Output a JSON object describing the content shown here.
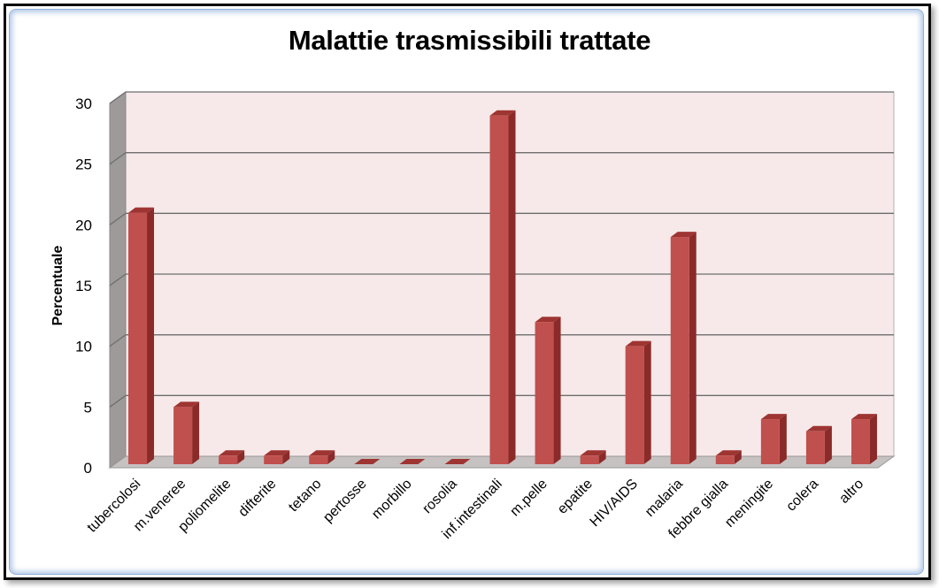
{
  "chart_data": {
    "type": "bar",
    "title": "Malattie trasmissibili trattate",
    "xlabel": "",
    "ylabel": "Percentuale",
    "ylim": [
      0,
      30
    ],
    "yticks": [
      0,
      5,
      10,
      15,
      20,
      25,
      30
    ],
    "grid": true,
    "style": "3d-column",
    "colors": {
      "bar_front": "#c0504d",
      "bar_side": "#8b2b29",
      "bar_top": "#9e3532",
      "back_wall": "#f7e9e9",
      "side_wall": "#9e9a9a",
      "floor": "#c6c2c2",
      "gridline": "#6e6e6e"
    },
    "categories": [
      "tubercolosi",
      "m.veneree",
      "poliomelite",
      "difterite",
      "tetano",
      "pertosse",
      "morbillo",
      "rosolia",
      "inf.intestinali",
      "m.pelle",
      "epatite",
      "HIV/AIDS",
      "malaria",
      "febbre gialla",
      "meningite",
      "colera",
      "altro"
    ],
    "values": [
      21,
      5,
      1,
      1,
      1,
      0,
      0,
      0,
      29,
      12,
      1,
      10,
      19,
      1,
      4,
      3,
      4
    ]
  }
}
